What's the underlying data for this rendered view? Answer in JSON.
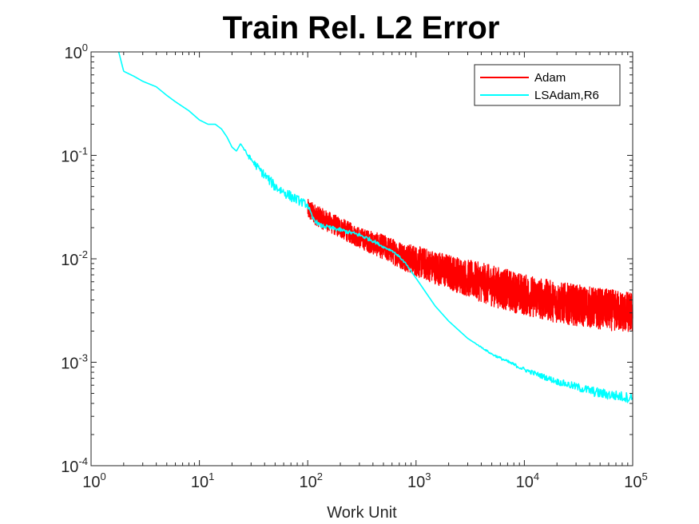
{
  "chart_data": {
    "type": "line",
    "title": "Train Rel. L2 Error",
    "xlabel": "Work Unit",
    "ylabel": "",
    "xscale": "log",
    "yscale": "log",
    "xlim": [
      1,
      100000
    ],
    "ylim": [
      0.0001,
      1
    ],
    "grid": false,
    "legend_position": "top-right",
    "x_ticks": [
      {
        "base": "10",
        "exp": "0",
        "value": 1
      },
      {
        "base": "10",
        "exp": "1",
        "value": 10
      },
      {
        "base": "10",
        "exp": "2",
        "value": 100
      },
      {
        "base": "10",
        "exp": "3",
        "value": 1000
      },
      {
        "base": "10",
        "exp": "4",
        "value": 10000
      },
      {
        "base": "10",
        "exp": "5",
        "value": 100000
      }
    ],
    "y_ticks": [
      {
        "base": "10",
        "exp": "-4",
        "value": 0.0001
      },
      {
        "base": "10",
        "exp": "-3",
        "value": 0.001
      },
      {
        "base": "10",
        "exp": "-2",
        "value": 0.01
      },
      {
        "base": "10",
        "exp": "-1",
        "value": 0.1
      },
      {
        "base": "10",
        "exp": "0",
        "value": 1
      }
    ],
    "series": [
      {
        "name": "Adam",
        "color": "#ff0000",
        "noisy": true,
        "x": [
          100,
          130,
          200,
          300,
          500,
          700,
          1000,
          2000,
          3000,
          5000,
          10000,
          20000,
          50000,
          100000
        ],
        "y": [
          0.03,
          0.025,
          0.02,
          0.016,
          0.013,
          0.011,
          0.0095,
          0.0075,
          0.0065,
          0.0055,
          0.0045,
          0.0038,
          0.0033,
          0.003
        ],
        "noise": [
          0.1,
          0.1,
          0.1,
          0.1,
          0.12,
          0.13,
          0.15,
          0.17,
          0.18,
          0.2,
          0.2,
          0.2,
          0.2,
          0.2
        ]
      },
      {
        "name": "LSAdam,R6",
        "color": "#00ffff",
        "noisy": false,
        "x": [
          1.8,
          2,
          2.5,
          3,
          4,
          5,
          6,
          8,
          10,
          12,
          14,
          16,
          18,
          20,
          22,
          24,
          28,
          35,
          50,
          70,
          90,
          100,
          110,
          130,
          200,
          300,
          400,
          500,
          600,
          700,
          800,
          1000,
          1500,
          2000,
          3000,
          5000,
          10000,
          20000,
          50000,
          100000
        ],
        "y": [
          1,
          0.65,
          0.58,
          0.52,
          0.46,
          0.38,
          0.33,
          0.27,
          0.22,
          0.2,
          0.2,
          0.18,
          0.15,
          0.12,
          0.11,
          0.13,
          0.1,
          0.075,
          0.05,
          0.04,
          0.035,
          0.033,
          0.025,
          0.021,
          0.019,
          0.017,
          0.015,
          0.013,
          0.012,
          0.0105,
          0.009,
          0.0065,
          0.0035,
          0.0025,
          0.0017,
          0.0012,
          0.00085,
          0.00065,
          0.0005,
          0.00045
        ],
        "noise": [
          0,
          0,
          0,
          0,
          0,
          0,
          0,
          0,
          0,
          0,
          0,
          0,
          0,
          0,
          0,
          0,
          0.02,
          0.04,
          0.05,
          0.05,
          0.04,
          0.03,
          0.02,
          0.02,
          0.02,
          0.02,
          0.02,
          0.01,
          0.01,
          0.01,
          0.01,
          0,
          0,
          0,
          0,
          0.01,
          0.02,
          0.03,
          0.05,
          0.05
        ]
      }
    ]
  }
}
